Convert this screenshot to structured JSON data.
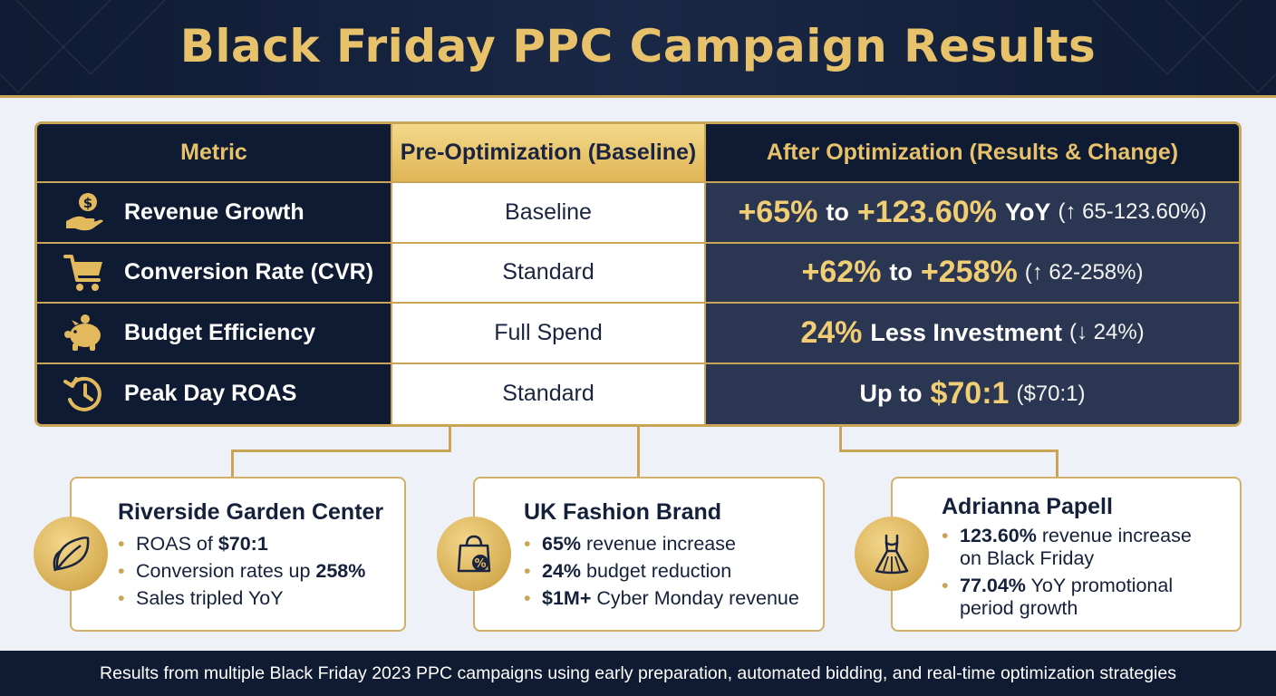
{
  "title": "Black Friday PPC Campaign Results",
  "table": {
    "headers": [
      "Metric",
      "Pre-Optimization (Baseline)",
      "After Optimization (Results & Change)"
    ],
    "rows": [
      {
        "icon": "money-hand-icon",
        "metric": "Revenue Growth",
        "baseline": "Baseline",
        "result": {
          "big1": "+65%",
          "mid1": "to",
          "big2": "+123.60%",
          "mid2": "YoY",
          "note_open": "(",
          "arrow": "↑",
          "note": "65-123.60%)"
        }
      },
      {
        "icon": "shopping-cart-icon",
        "metric": "Conversion Rate (CVR)",
        "baseline": "Standard",
        "result": {
          "big1": "+62%",
          "mid1": "to",
          "big2": "+258%",
          "note_open": "(",
          "arrow": "↑",
          "note": "62-258%)"
        }
      },
      {
        "icon": "piggy-bank-icon",
        "metric": "Budget Efficiency",
        "baseline": "Full Spend",
        "result": {
          "big1": "24%",
          "mid1": "Less Investment",
          "note_open": "(",
          "arrow": "↓",
          "note": "24%)"
        }
      },
      {
        "icon": "clock-history-icon",
        "metric": "Peak Day ROAS",
        "baseline": "Standard",
        "result": {
          "mid1": "Up to",
          "big1": "$70:1",
          "note": "($70:1)"
        }
      }
    ]
  },
  "cards": [
    {
      "icon": "leaf-icon",
      "title": "Riverside Garden Center",
      "items": [
        {
          "text": "ROAS of ",
          "bold": "$70:1",
          "bold_first": false
        },
        {
          "text": "Conversion rates up ",
          "bold": "258%",
          "bold_first": false
        },
        {
          "text": "Sales tripled YoY",
          "bold": "",
          "bold_first": false
        }
      ]
    },
    {
      "icon": "shopping-bag-percent-icon",
      "title": "UK Fashion Brand",
      "items": [
        {
          "bold": "65%",
          "text": " revenue increase",
          "bold_first": true
        },
        {
          "bold": "24%",
          "text": " budget reduction",
          "bold_first": true
        },
        {
          "bold": "$1M+",
          "text": " Cyber Monday revenue",
          "bold_first": true
        }
      ]
    },
    {
      "icon": "dress-icon",
      "title": "Adrianna Papell",
      "items": [
        {
          "bold": "123.60%",
          "text": " revenue increase",
          "line2": "on Black Friday"
        },
        {
          "bold": "77.04%",
          "text": " YoY promotional",
          "line2": "period growth"
        }
      ]
    }
  ],
  "footer": "Results from multiple Black Friday 2023 PPC campaigns using early preparation, automated bidding, and real-time optimization strategies",
  "colors": {
    "navy": "#0f1b33",
    "gold": "#c9a557",
    "gold_text": "#e8c26a",
    "result_bg": "#2b3752"
  }
}
